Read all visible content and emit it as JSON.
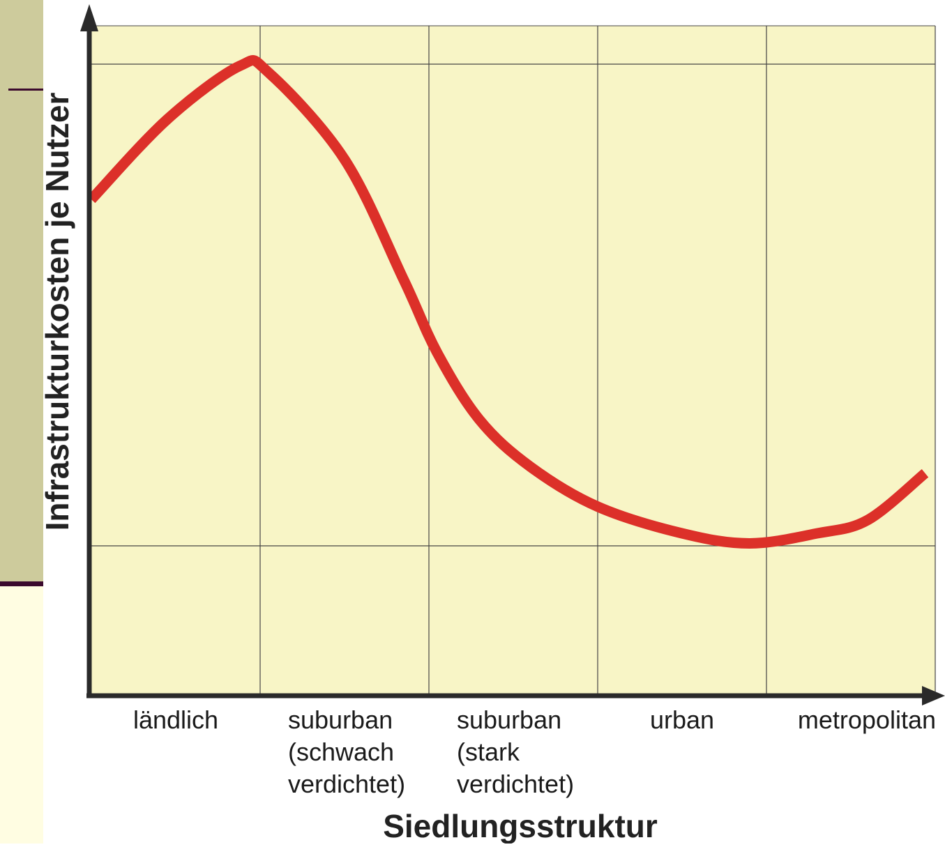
{
  "chart_data": {
    "type": "line",
    "title": "",
    "xlabel": "Siedlungsstruktur",
    "ylabel": "Infrastrukturkosten je Nutzer",
    "categories": [
      [
        "ländlich"
      ],
      [
        "suburban",
        "(schwach",
        "verdichtet)"
      ],
      [
        "suburban",
        "(stark",
        "verdichtet)"
      ],
      [
        "urban"
      ],
      [
        "metropolitan"
      ]
    ],
    "xlim": [
      0,
      5
    ],
    "ylim": [
      0,
      1
    ],
    "grid": true,
    "legend": "none",
    "series": [
      {
        "values": [
          [
            0.0,
            0.74
          ],
          [
            0.45,
            0.86
          ],
          [
            0.88,
            0.94
          ],
          [
            1.05,
            0.93
          ],
          [
            1.5,
            0.8
          ],
          [
            1.85,
            0.62
          ],
          [
            2.05,
            0.51
          ],
          [
            2.3,
            0.41
          ],
          [
            2.6,
            0.34
          ],
          [
            3.0,
            0.28
          ],
          [
            3.5,
            0.24
          ],
          [
            3.9,
            0.225
          ],
          [
            4.3,
            0.24
          ],
          [
            4.6,
            0.26
          ],
          [
            4.94,
            0.33
          ]
        ]
      }
    ]
  },
  "colors": {
    "plot_background": "#f8f5c6",
    "line": "#dc3029",
    "axis": "#2a2a2a",
    "grid": "#444444",
    "sidebar_top": "#cdcb9c",
    "sidebar_bottom": "#fffde2",
    "sidebar_accent": "#3b0a2d"
  }
}
